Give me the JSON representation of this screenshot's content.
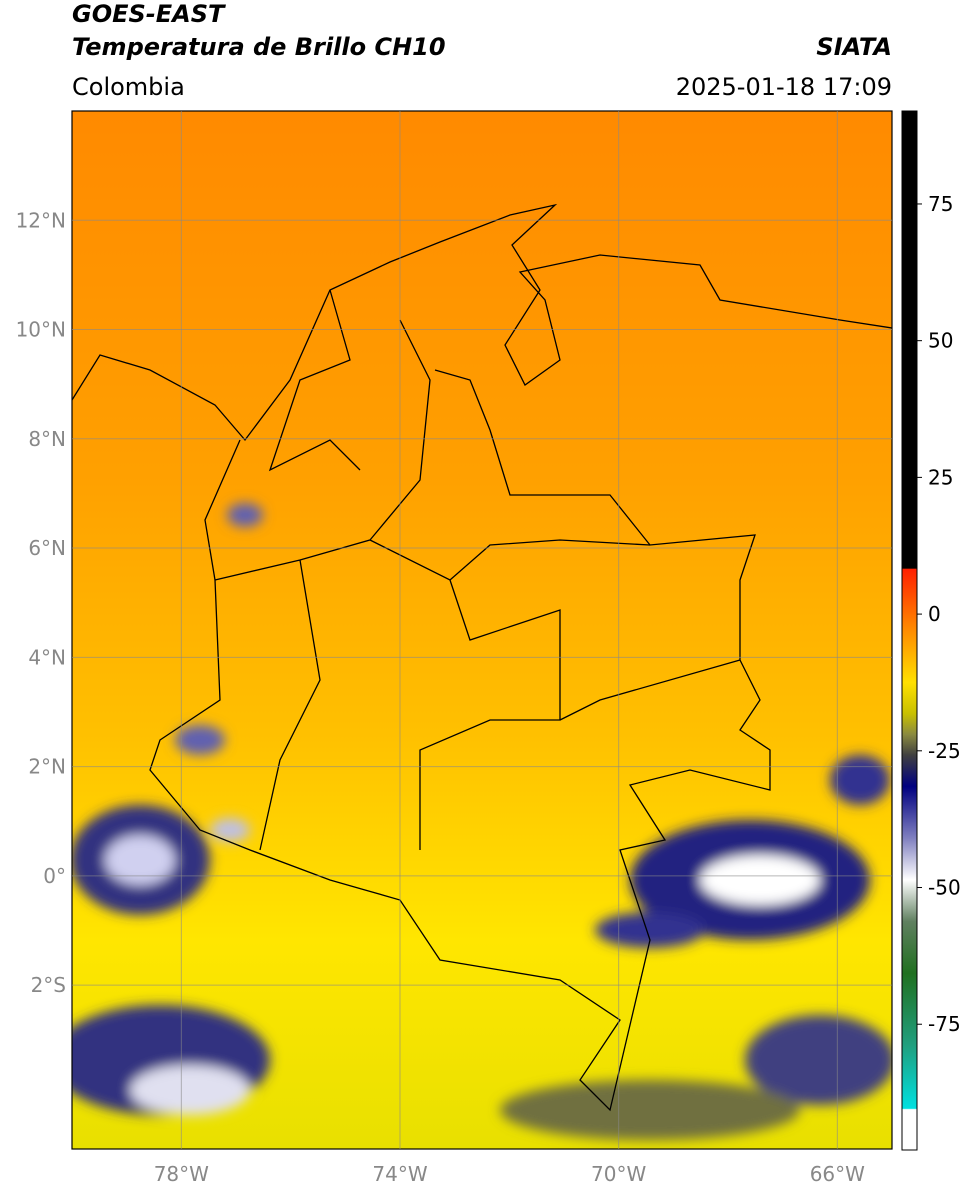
{
  "header": {
    "satellite": "GOES-EAST",
    "product": "Temperatura de Brillo CH10",
    "source": "SIATA",
    "region": "Colombia",
    "datetime": "2025-01-18 17:09"
  },
  "map": {
    "lonlim": [
      -80,
      -65
    ],
    "latlim": [
      -5,
      14
    ],
    "lat_ticks": [
      {
        "value": 12,
        "label": "12°N"
      },
      {
        "value": 10,
        "label": "10°N"
      },
      {
        "value": 8,
        "label": "8°N"
      },
      {
        "value": 6,
        "label": "6°N"
      },
      {
        "value": 4,
        "label": "4°N"
      },
      {
        "value": 2,
        "label": "2°N"
      },
      {
        "value": 0,
        "label": "0°"
      },
      {
        "value": -2,
        "label": "2°S"
      }
    ],
    "lon_ticks": [
      {
        "value": -78,
        "label": "78°W"
      },
      {
        "value": -74,
        "label": "74°W"
      },
      {
        "value": -70,
        "label": "70°W"
      },
      {
        "value": -66,
        "label": "66°W"
      }
    ]
  },
  "colorbar": {
    "lim": [
      -98,
      92
    ],
    "ticks": [
      75,
      50,
      25,
      0,
      -25,
      -50,
      -75
    ]
  }
}
